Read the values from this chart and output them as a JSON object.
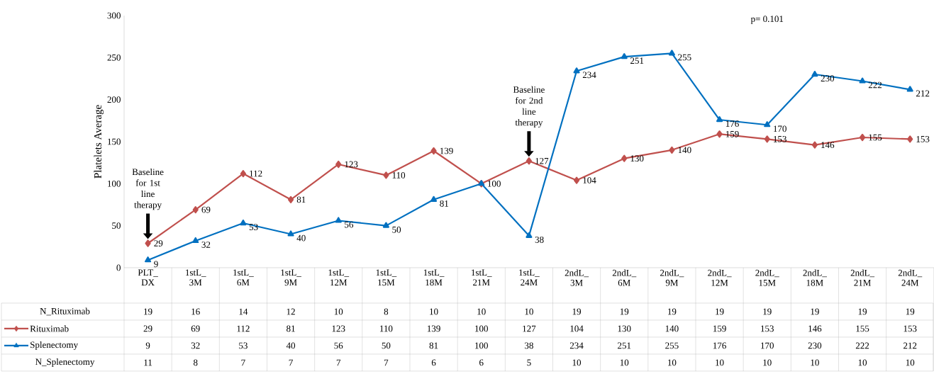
{
  "chart_data": {
    "type": "line",
    "ylabel": "Platelets Average",
    "categories": [
      "PLT_ DX",
      "1stL_ 3M",
      "1stL_ 6M",
      "1stL_ 9M",
      "1stL_ 12M",
      "1stL_ 15M",
      "1stL_ 18M",
      "1stL_ 21M",
      "1stL_ 24M",
      "2ndL_ 3M",
      "2ndL_ 6M",
      "2ndL_ 9M",
      "2ndL_ 12M",
      "2ndL_ 15M",
      "2ndL_ 18M",
      "2ndL_ 21M",
      "2ndL_ 24M"
    ],
    "series": [
      {
        "name": "Rituximab",
        "color": "#c0504d",
        "marker": "diamond",
        "values": [
          29,
          69,
          112,
          81,
          123,
          110,
          139,
          100,
          127,
          104,
          130,
          140,
          159,
          153,
          146,
          155,
          153
        ],
        "value_labels": [
          "29",
          "69",
          "112",
          "81",
          "123",
          "110",
          "139",
          "100",
          "127",
          "104",
          "130",
          "140",
          "159",
          "153",
          "146",
          "155",
          "153"
        ]
      },
      {
        "name": "Splenectomy",
        "color": "#0070c0",
        "marker": "triangle",
        "values": [
          9,
          32,
          53,
          40,
          56,
          50,
          81,
          100,
          38,
          234,
          251,
          255,
          176,
          170,
          230,
          222,
          212
        ],
        "value_labels": [
          "9",
          "32",
          "53",
          "40",
          "56",
          "50",
          "81",
          null,
          "38",
          "234",
          "251",
          "255",
          "176",
          "170",
          "230",
          "222",
          "212"
        ]
      }
    ],
    "ylim": [
      0,
      300
    ],
    "yticks": [
      0,
      50,
      100,
      150,
      200,
      250,
      300
    ],
    "legend": "bottom left",
    "annotations": [
      "Baseline for 1st line therapy",
      "Baseline for 2nd line therapy",
      "p= 0.101",
      "N_Rituximab",
      "N_Splenectomy",
      "19",
      "16",
      "14",
      "12",
      "10",
      "8",
      "10",
      "10",
      "10",
      "19",
      "19",
      "19",
      "19",
      "19",
      "19",
      "19",
      "19",
      "29",
      "69",
      "112",
      "81",
      "123",
      "110",
      "139",
      "100",
      "127",
      "104",
      "130",
      "140",
      "159",
      "153",
      "146",
      "155",
      "153",
      "9",
      "32",
      "53",
      "40",
      "56",
      "50",
      "81",
      "100",
      "38",
      "234",
      "251",
      "255",
      "176",
      "170",
      "230",
      "222",
      "212",
      "11",
      "8",
      "7",
      "7",
      "7",
      "7",
      "6",
      "6",
      "5",
      "10",
      "10",
      "10",
      "10",
      "10",
      "10",
      "10",
      "10"
    ]
  }
}
